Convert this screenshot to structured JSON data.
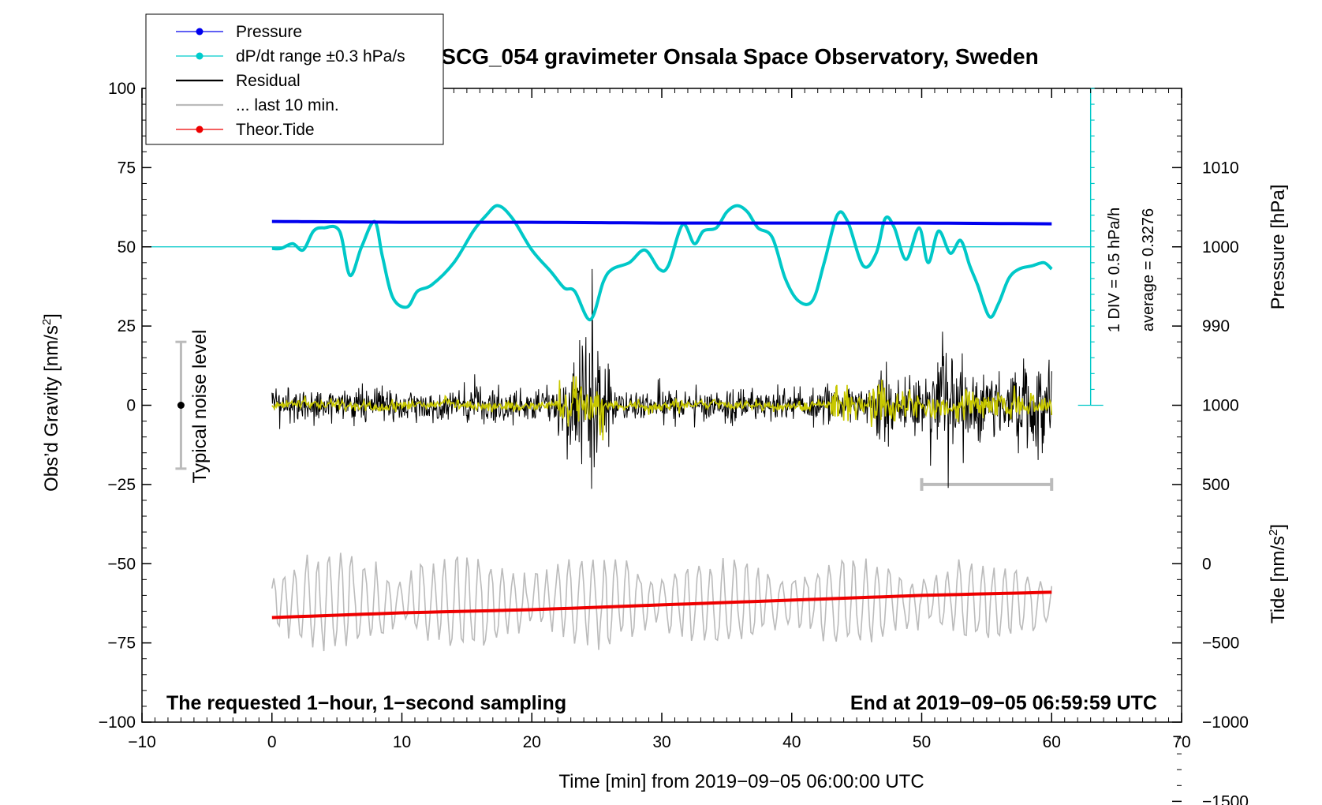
{
  "chart_data": {
    "type": "line",
    "title": "SCG_054 gravimeter Onsala Space Observatory, Sweden",
    "xlabel": "Time [min] from 2019−09−05 06:00:00 UTC",
    "ylabel_left": "Obs’d Gravity [nm/s",
    "ylabel_left_sup": "2",
    "ylabel_left_end": "]",
    "ylabel_pressure": "Pressure [hPa]",
    "ylabel_tide": "Tide [nm/s",
    "ylabel_tide_sup": "2",
    "ylabel_tide_end": "]",
    "xlim": [
      -10,
      70
    ],
    "ylim": [
      -100,
      100
    ],
    "x_ticks": [
      -10,
      0,
      10,
      20,
      30,
      40,
      50,
      60,
      70
    ],
    "x_tick_labels": [
      "−10",
      "0",
      "10",
      "20",
      "30",
      "40",
      "50",
      "60",
      "70"
    ],
    "y_ticks": [
      100,
      75,
      50,
      25,
      0,
      -25,
      -50,
      -75,
      -100
    ],
    "y_tick_labels": [
      "100",
      "75",
      "50",
      "25",
      "0",
      "−25",
      "−50",
      "−75",
      "−100"
    ],
    "pressure_axis": {
      "ticks": [
        1010,
        1000,
        990
      ],
      "tick_labels": [
        "1010",
        "1000",
        "990"
      ],
      "map": "gravity = 50 + (pressure - 1000) * 2.5"
    },
    "tide_axis": {
      "ticks": [
        1000,
        500,
        0,
        -500,
        -1000,
        -1500
      ],
      "tick_labels": [
        "1000",
        "500",
        "0",
        "−500",
        "−1000",
        "−1500"
      ],
      "map": "gravity = -50 + tide * 0.05"
    },
    "legend": [
      {
        "label": "Pressure",
        "color": "#0000ee",
        "marker": true
      },
      {
        "label": "dP/dt range ±0.3 hPa/s",
        "color": "#00cccc",
        "marker": true
      },
      {
        "label": "Residual",
        "color": "#000000",
        "marker": false
      },
      {
        "label": "... last 10 min.",
        "color": "#bbbbbb",
        "marker": false
      },
      {
        "label": "Theor.Tide",
        "color": "#ee0000",
        "marker": true
      }
    ],
    "series": {
      "pressure": {
        "name": "Pressure",
        "units": "hPa",
        "color": "#0000ee",
        "x": [
          0,
          10,
          20,
          30,
          40,
          50,
          60
        ],
        "values": [
          1003.2,
          1003.1,
          1003.1,
          1003.0,
          1003.0,
          1003.0,
          1002.9
        ]
      },
      "dpdt": {
        "name": "dP/dt",
        "units": "gravity-plot units",
        "color": "#00c8c8",
        "x": [
          0,
          0.7,
          1.6,
          2.4,
          3.2,
          4.0,
          5.2,
          6.0,
          6.9,
          7.9,
          8.5,
          9.3,
          10.4,
          11.2,
          12.3,
          14.0,
          15.5,
          16.5,
          17.4,
          18.5,
          20.0,
          21.5,
          22.5,
          23.3,
          24.5,
          25.5,
          26.2,
          27.5,
          28.7,
          29.8,
          30.5,
          31.6,
          32.5,
          33.2,
          34.2,
          35.0,
          35.8,
          36.6,
          37.4,
          38.5,
          39.5,
          40.5,
          41.6,
          42.5,
          43.5,
          44.3,
          45.5,
          46.5,
          47.2,
          47.9,
          48.8,
          49.8,
          50.5,
          51.3,
          52.2,
          53.0,
          53.7,
          54.3,
          55.2,
          55.9,
          56.7,
          57.5,
          58.5,
          59.4,
          60.0
        ],
        "values": [
          49.5,
          49.5,
          51,
          49,
          55,
          56,
          55,
          41,
          50,
          58,
          47,
          34,
          31,
          36,
          38,
          45,
          55,
          60,
          63,
          59,
          49,
          42,
          37,
          36,
          27,
          39,
          43,
          45,
          49,
          43,
          44,
          57,
          51,
          55,
          56,
          61,
          63,
          61,
          56,
          53,
          40,
          33,
          33,
          45,
          60,
          58,
          44,
          48,
          59,
          56,
          46,
          56,
          45,
          55,
          48,
          52,
          44,
          38,
          28,
          32,
          40,
          43,
          44,
          45,
          43
        ]
      },
      "residual": {
        "name": "Residual",
        "color": "#000000",
        "x_range": [
          0,
          60
        ],
        "ylim_observed": [
          -36,
          45
        ]
      },
      "residual_smoothed": {
        "name": "Residual smoothed",
        "color": "#c8c800",
        "x_range": [
          0,
          60
        ]
      },
      "last_10_min": {
        "name": "... last 10 min.",
        "color": "#bbbbbb",
        "x_range": [
          0,
          60
        ],
        "center": -62
      },
      "tide": {
        "name": "Theor.Tide",
        "units": "nm/s2",
        "color": "#ee0000",
        "x": [
          0,
          10,
          20,
          30,
          40,
          50,
          60
        ],
        "values": [
          -340,
          -310,
          -290,
          -260,
          -230,
          -200,
          -180
        ]
      }
    },
    "reference_line": {
      "y": 50,
      "color": "#00c8c8",
      "x_range": [
        -10,
        63
      ]
    },
    "noise_bar": {
      "label": "Typical noise level",
      "x": -7,
      "center": 0,
      "range": [
        -20,
        20
      ]
    },
    "last_10_bar": {
      "x_range": [
        50,
        60
      ],
      "y": -25
    },
    "dpdt_scale": {
      "x": 63,
      "y_range": [
        0,
        100
      ],
      "tick_step": 5,
      "label1": "1 DIV = 0.5 hPa/h",
      "label2": "average = 0.3276"
    },
    "note_left": "The requested 1−hour, 1−second sampling",
    "note_right": "End at 2019−09−05 06:59:59 UTC"
  }
}
